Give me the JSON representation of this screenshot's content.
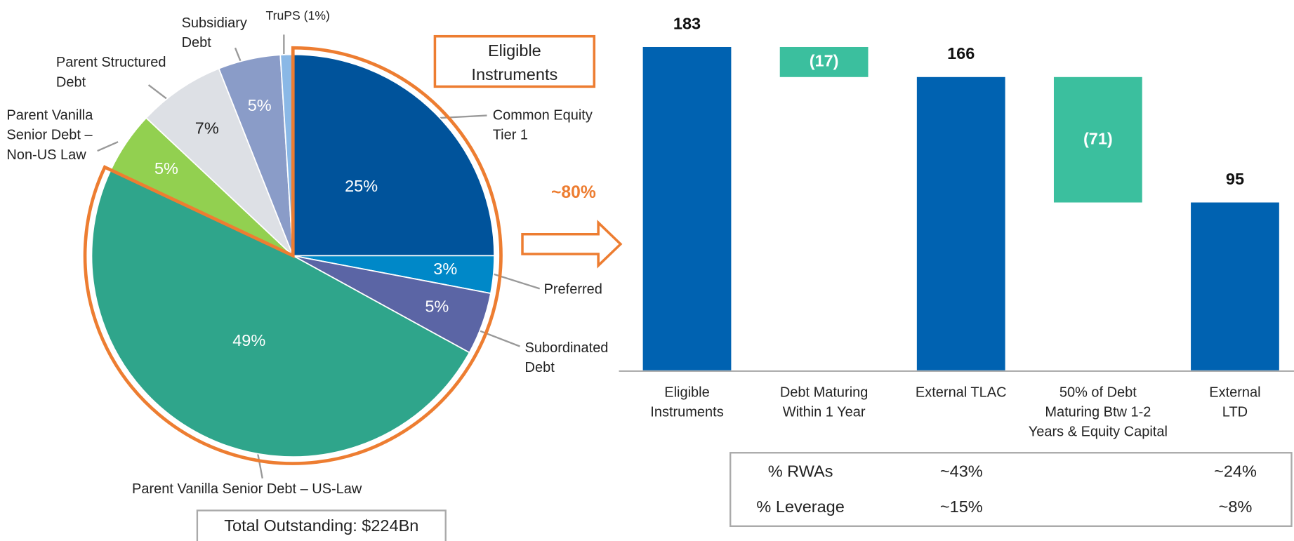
{
  "chart_data": [
    {
      "type": "pie",
      "categories": [
        "Common Equity\nTier 1",
        "Preferred",
        "Subordinated\nDebt",
        "Parent Vanilla Senior Debt – US-Law",
        "Parent Vanilla\nSenior Debt –\nNon-US Law",
        "Parent Structured\nDebt",
        "Subsidiary\nDebt",
        "TruPS (1%)"
      ],
      "values": [
        25,
        3,
        5,
        49,
        5,
        7,
        5,
        1
      ],
      "value_labels": [
        "25%",
        "3%",
        "5%",
        "49%",
        "5%",
        "7%",
        "5%",
        null
      ],
      "colors": [
        "#00539b",
        "#0088c8",
        "#5b65a5",
        "#2fa58b",
        "#92d050",
        "#dde0e5",
        "#8a9cc8",
        "#8ab8e6"
      ],
      "label_colors": [
        "#ffffff",
        "#ffffff",
        "#ffffff",
        "#ffffff",
        "#ffffff",
        "#222222",
        "#ffffff",
        "#ffffff"
      ],
      "highlight_label": "Eligible\nInstruments",
      "highlight_share": "~80%",
      "total_label": "Total Outstanding: $224Bn"
    },
    {
      "type": "waterfall",
      "categories": [
        "Eligible\nInstruments",
        "Debt Maturing\nWithin 1 Year",
        "External TLAC",
        "50% of Debt\nMaturing Btw 1-2\nYears & Equity Capital",
        "External\nLTD"
      ],
      "values": [
        183,
        -17,
        166,
        -71,
        95
      ],
      "value_labels": [
        "183",
        "(17)",
        "166",
        "(71)",
        "95"
      ],
      "measure": [
        "total",
        "relative",
        "total",
        "relative",
        "total"
      ],
      "total_color": "#0062b1",
      "decrease_color": "#3bbf9e"
    }
  ],
  "table": {
    "rows": [
      [
        "% RWAs",
        "~43%",
        "~24%"
      ],
      [
        "% Leverage",
        "~15%",
        "~8%"
      ]
    ]
  }
}
